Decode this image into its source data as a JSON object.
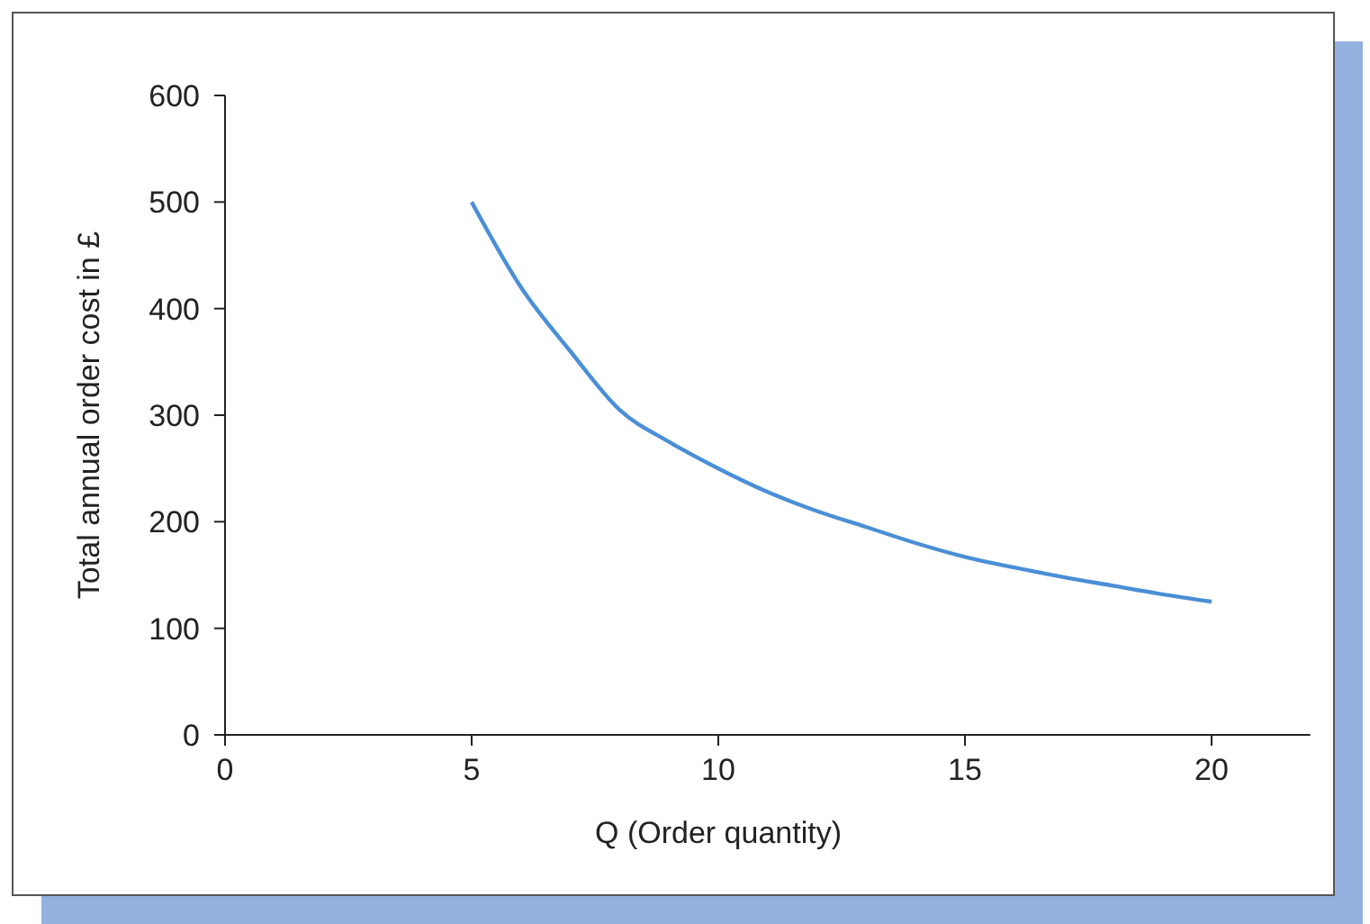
{
  "chart_data": {
    "type": "line",
    "xlabel": "Q (Order quantity)",
    "ylabel": "Total annual order cost in £",
    "x": [
      5,
      6,
      7,
      8,
      9,
      10,
      11,
      12,
      13,
      14,
      15,
      16,
      17,
      18,
      19,
      20
    ],
    "series": [
      {
        "color": "#4a8fd6",
        "values": [
          500,
          420,
          360,
          305,
          275,
          250,
          228,
          210,
          195,
          180,
          167,
          157,
          148,
          140,
          132,
          125
        ]
      }
    ],
    "xlim": [
      0,
      22
    ],
    "xticks": [
      0,
      5,
      10,
      15,
      20
    ],
    "ylim": [
      0,
      600
    ],
    "yticks": [
      0,
      100,
      200,
      300,
      400,
      500,
      600
    ],
    "grid": false,
    "marker": "none",
    "line_style": "solid"
  }
}
